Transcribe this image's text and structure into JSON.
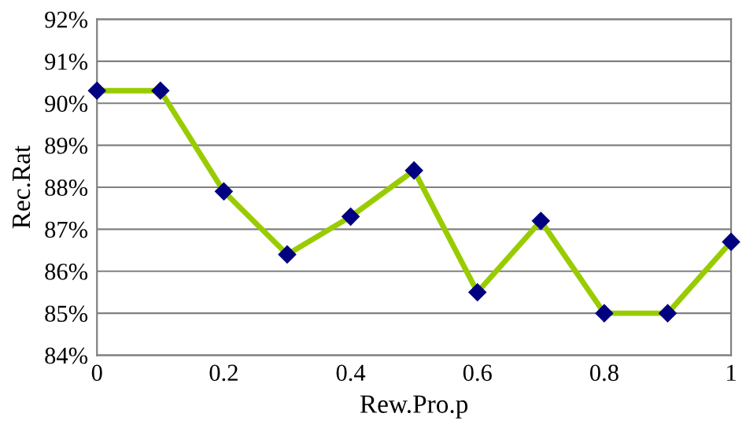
{
  "chart_data": {
    "type": "line",
    "xlabel": "Rew.Pro.p",
    "ylabel": "Rec.Rat",
    "x": [
      0,
      0.1,
      0.2,
      0.3,
      0.4,
      0.5,
      0.6,
      0.7,
      0.8,
      0.9,
      1
    ],
    "series": [
      {
        "color": "#99cc00",
        "values": [
          90.3,
          90.3,
          87.9,
          86.4,
          87.3,
          88.4,
          85.5,
          87.2,
          85.0,
          85.0,
          86.7
        ]
      }
    ],
    "marker": "diamond",
    "line_style": "solid",
    "xlim": [
      0,
      1
    ],
    "xticks": [
      0,
      {
        "value": 0.2,
        "label": "0.2"
      },
      {
        "value": 0.4,
        "label": "0.4"
      },
      {
        "value": 0.6,
        "label": "0.6"
      },
      {
        "value": 0.8,
        "label": "0.8"
      },
      1
    ],
    "ylim": [
      84,
      92
    ],
    "yticks": [
      {
        "value": 84,
        "label": "84%"
      },
      {
        "value": 85,
        "label": "85%"
      },
      {
        "value": 86,
        "label": "86%"
      },
      {
        "value": 87,
        "label": "87%"
      },
      {
        "value": 88,
        "label": "88%"
      },
      {
        "value": 89,
        "label": "89%"
      },
      {
        "value": 90,
        "label": "90%"
      },
      {
        "value": 91,
        "label": "91%"
      },
      {
        "value": 92,
        "label": "92%"
      }
    ],
    "grid": "y"
  }
}
